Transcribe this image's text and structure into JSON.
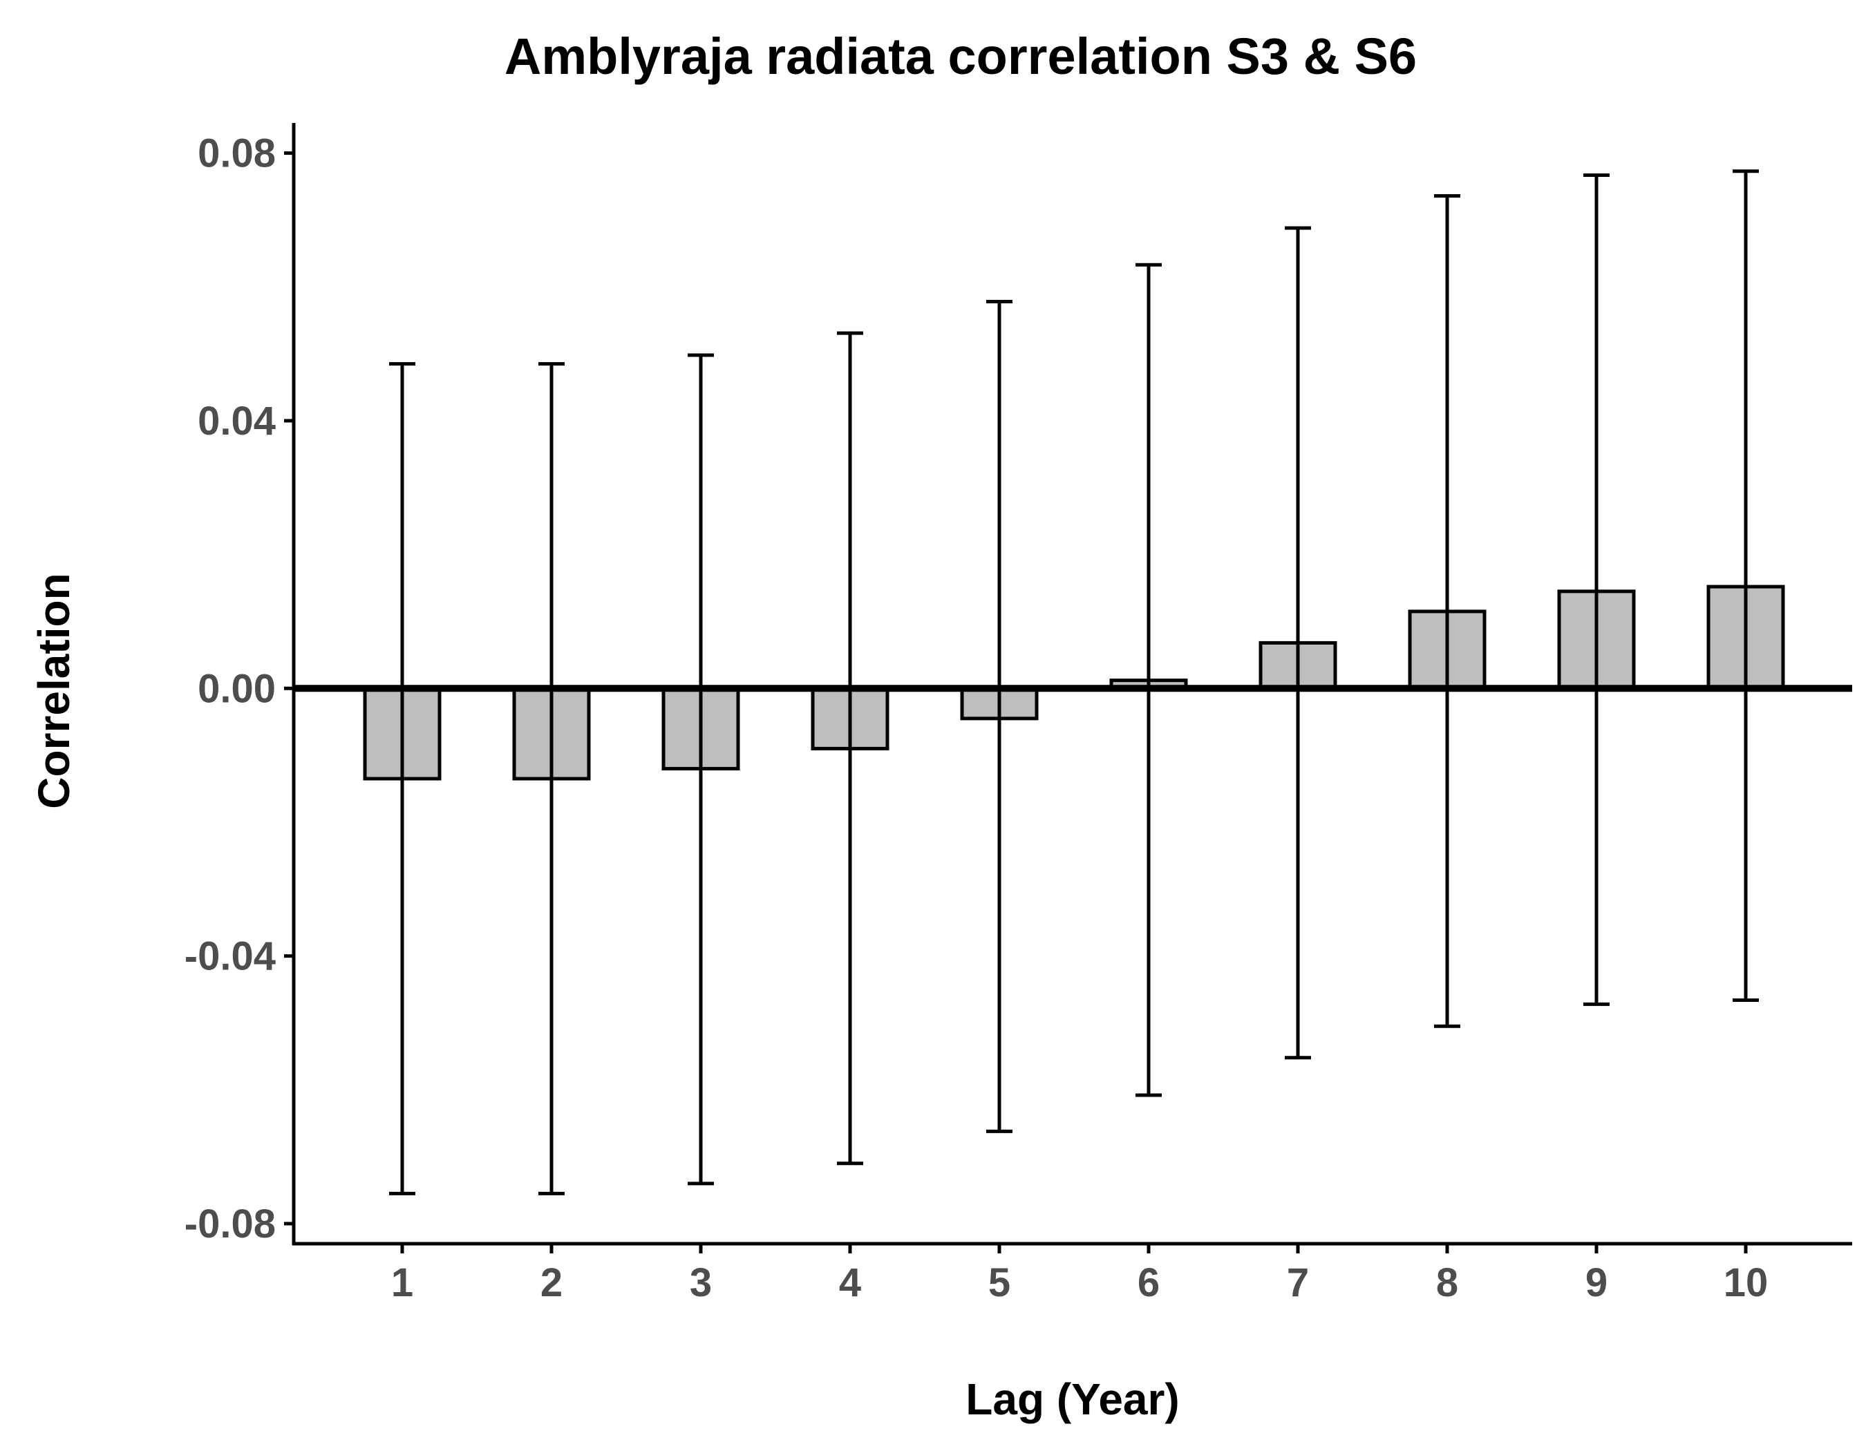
{
  "chart_data": {
    "type": "bar",
    "title": "Amblyraja radiata correlation S3 & S6",
    "xlabel": "Lag (Year)",
    "ylabel": "Correlation",
    "categories": [
      "1",
      "2",
      "3",
      "4",
      "5",
      "6",
      "7",
      "8",
      "9",
      "10"
    ],
    "values": [
      -0.0135,
      -0.0135,
      -0.012,
      -0.009,
      -0.0045,
      0.0012,
      0.0068,
      0.0115,
      0.0145,
      0.0152
    ],
    "error_lower": [
      -0.0755,
      -0.0755,
      -0.074,
      -0.071,
      -0.0662,
      -0.0608,
      -0.0552,
      -0.0505,
      -0.0472,
      -0.0466
    ],
    "error_upper": [
      0.0485,
      0.0485,
      0.0498,
      0.0531,
      0.0578,
      0.0633,
      0.0688,
      0.0736,
      0.0767,
      0.0773
    ],
    "yticks": [
      "-0.08",
      "-0.04",
      "0.00",
      "0.04",
      "0.08"
    ],
    "ylim": [
      -0.083,
      0.0845
    ],
    "grid": false,
    "bar_fill": "#bebebe",
    "bar_stroke": "#000000",
    "axis_color": "#000000",
    "tick_label_color": "#4d4d4d"
  }
}
